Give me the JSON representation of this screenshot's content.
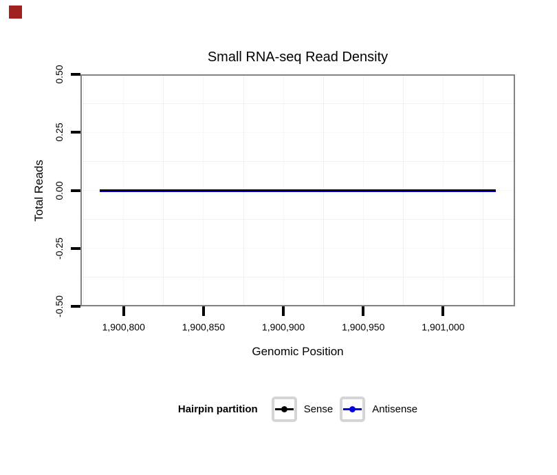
{
  "corner_marker": {
    "color": "#a12121"
  },
  "chart_data": {
    "type": "line",
    "title": "Small RNA-seq Read Density",
    "xlabel": "Genomic Position",
    "ylabel": "Total Reads",
    "xlim": [
      1900773,
      1901045
    ],
    "ylim": [
      -0.5,
      0.5
    ],
    "x_ticks": [
      {
        "value": 1900800,
        "label": "1,900,800"
      },
      {
        "value": 1900850,
        "label": "1,900,850"
      },
      {
        "value": 1900900,
        "label": "1,900,900"
      },
      {
        "value": 1900950,
        "label": "1,900,950"
      },
      {
        "value": 1901000,
        "label": "1,901,000"
      }
    ],
    "y_ticks": [
      {
        "value": 0.5,
        "label": "0.50"
      },
      {
        "value": 0.25,
        "label": "0.25"
      },
      {
        "value": 0.0,
        "label": "0.00"
      },
      {
        "value": -0.25,
        "label": "-0.25"
      },
      {
        "value": -0.5,
        "label": "-0.50"
      }
    ],
    "grid": {
      "x_minor": [
        1900775,
        1900825,
        1900875,
        1900925,
        1900975,
        1901025
      ],
      "y_minor": [
        0.375,
        0.125,
        -0.125,
        -0.375
      ],
      "minor_color": "#efefef",
      "major_color": "#f7f7f7",
      "grid_on": true
    },
    "panel_border_color": "#828282",
    "tick_color": "#000000",
    "series": [
      {
        "name": "Antisense",
        "color": "#0000ee",
        "x": [
          1900785,
          1901033
        ],
        "y": [
          0,
          0
        ]
      },
      {
        "name": "Sense",
        "color": "#000000",
        "x": [
          1900785,
          1901033
        ],
        "y": [
          0,
          0
        ]
      }
    ],
    "legend": {
      "title": "Hairpin partition",
      "position": "bottom",
      "entries": [
        {
          "label": "Sense",
          "color": "#000000"
        },
        {
          "label": "Antisense",
          "color": "#0000ee"
        }
      ]
    }
  }
}
